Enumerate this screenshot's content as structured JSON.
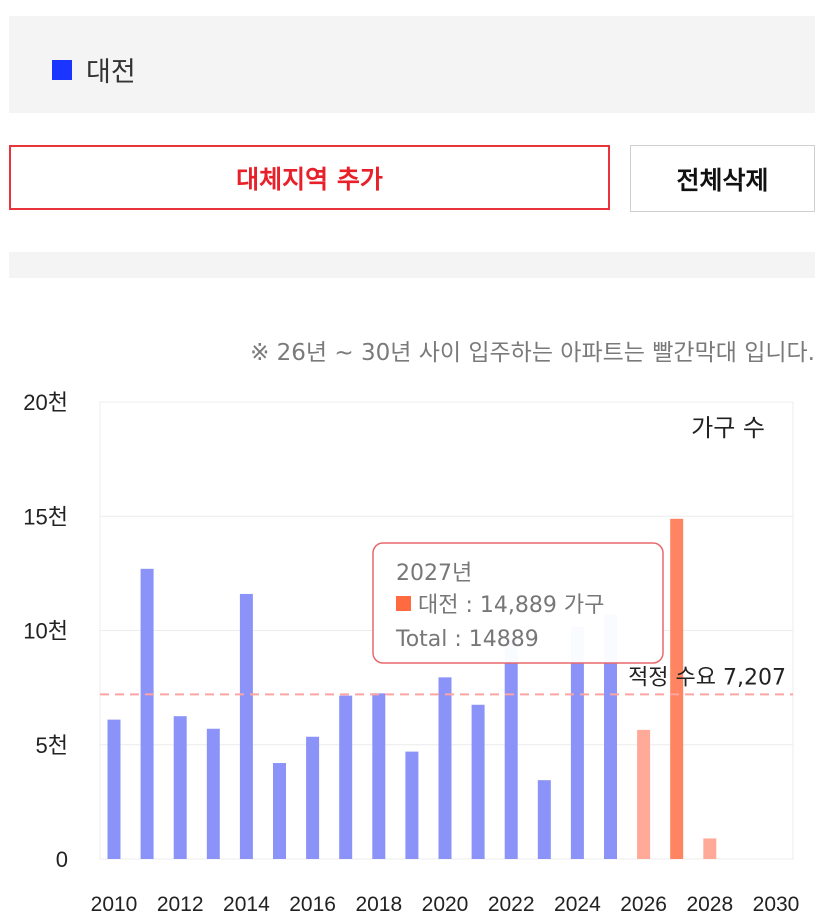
{
  "region": {
    "name": "대전",
    "color": "#1a35ff"
  },
  "buttons": {
    "add_label": "대체지역 추가",
    "delete_label": "전체삭제"
  },
  "note": "※ 26년 ~ 30년 사이 입주하는 아파트는 빨간막대 입니다.",
  "chart_data": {
    "type": "bar",
    "legend": "가구 수",
    "ylim": [
      0,
      20000
    ],
    "y_ticks": [
      {
        "value": 0,
        "label": "0"
      },
      {
        "value": 5000,
        "label": "5천"
      },
      {
        "value": 10000,
        "label": "10천"
      },
      {
        "value": 15000,
        "label": "15천"
      },
      {
        "value": 20000,
        "label": "20천"
      }
    ],
    "x_ticks": [
      "2010",
      "2012",
      "2014",
      "2016",
      "2018",
      "2020",
      "2022",
      "2024",
      "2026",
      "2028",
      "2030"
    ],
    "categories": [
      2010,
      2011,
      2012,
      2013,
      2014,
      2015,
      2016,
      2017,
      2018,
      2019,
      2020,
      2021,
      2022,
      2023,
      2024,
      2025,
      2026,
      2027,
      2028,
      2029,
      2030
    ],
    "values": [
      6100,
      12700,
      6250,
      5700,
      11600,
      4200,
      5350,
      7150,
      7250,
      4700,
      7950,
      6750,
      9600,
      3450,
      10150,
      10700,
      5650,
      14889,
      900,
      0,
      0
    ],
    "bar_colors": {
      "past": "#8b93f8",
      "future": "#ffaa99",
      "highlight": "#ff8461"
    },
    "highlight_year": 2027,
    "reference_line": {
      "value": 7207,
      "label": "적정 수요 7,207",
      "color": "#ffa3a3"
    },
    "tooltip": {
      "title": "2027년",
      "series_line": "대전 : 14,889 가구",
      "total_line": "Total : 14889",
      "marker_color": "#ff6a40",
      "border_color": "#e8696b"
    },
    "grid": true
  }
}
